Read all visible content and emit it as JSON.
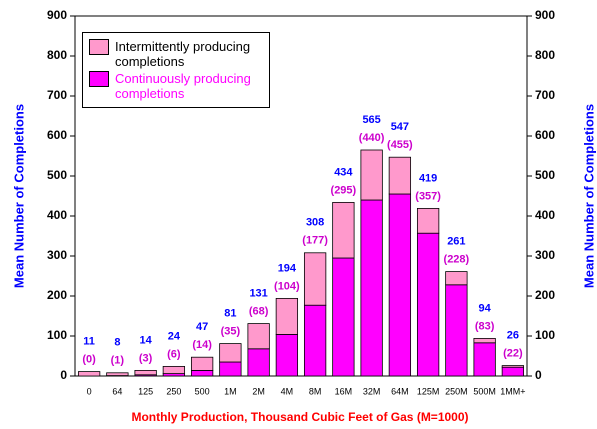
{
  "chart_data": {
    "type": "stacked_bar",
    "x_label": "Monthly Production, Thousand Cubic Feet of Gas (M=1000)",
    "y_label": "Mean Number of Completions",
    "y2_label": "Mean Number of Completions",
    "categories": [
      "0",
      "64",
      "125",
      "250",
      "500",
      "1M",
      "2M",
      "4M",
      "8M",
      "16M",
      "32M",
      "64M",
      "125M",
      "250M",
      "500M",
      "1MM+"
    ],
    "series": [
      {
        "name": "Continuously producing completions",
        "color": "#ff00ff",
        "values": [
          0,
          1,
          3,
          6,
          14,
          35,
          68,
          104,
          177,
          295,
          440,
          455,
          357,
          228,
          83,
          22
        ],
        "value_labels": [
          "(0)",
          "(1)",
          "(3)",
          "(6)",
          "(14)",
          "(35)",
          "(68)",
          "(104)",
          "(177)",
          "(295)",
          "(440)",
          "(455)",
          "(357)",
          "(228)",
          "(83)",
          "(22)"
        ]
      },
      {
        "name": "Intermittently producing completions",
        "color": "#ff99cc",
        "values": [
          11,
          7,
          11,
          18,
          33,
          46,
          63,
          90,
          131,
          139,
          125,
          92,
          62,
          33,
          11,
          4
        ]
      }
    ],
    "totals": [
      11,
      8,
      14,
      24,
      47,
      81,
      131,
      194,
      308,
      434,
      565,
      547,
      419,
      261,
      94,
      26
    ],
    "ylim": [
      0,
      900
    ],
    "yticks": [
      0,
      100,
      200,
      300,
      400,
      500,
      600,
      700,
      800,
      900
    ],
    "y2lim": [
      0,
      900
    ],
    "y2ticks": [
      0,
      100,
      200,
      300,
      400,
      500,
      600,
      700,
      800,
      900
    ],
    "legend": "upper-left"
  }
}
